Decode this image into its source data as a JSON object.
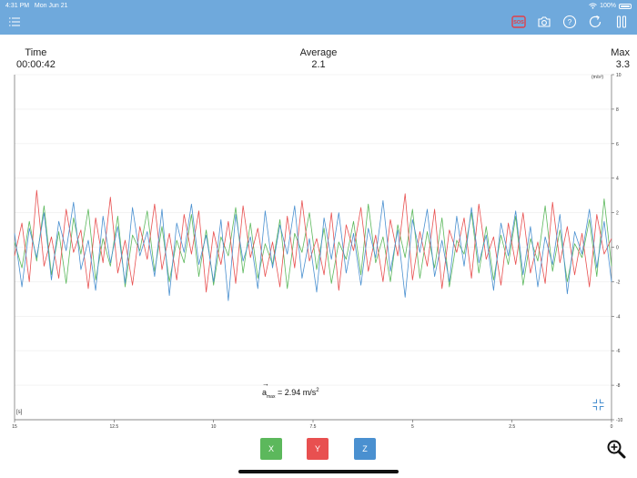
{
  "status_bar": {
    "time": "4:31 PM",
    "date": "Mon Jun 21",
    "battery_pct": "100%"
  },
  "toolbar": {
    "icons": [
      "menu-icon",
      "sos-icon",
      "camera-icon",
      "help-icon",
      "refresh-icon",
      "pause-icon"
    ],
    "sos_label": "SOS",
    "accent_color": "#6fa9dc",
    "sos_color": "#e0404a"
  },
  "stats": {
    "time_label": "Time",
    "time_value": "00:00:42",
    "avg_label": "Average",
    "avg_value": "2.1",
    "max_label": "Max",
    "max_value": "3.3"
  },
  "chart": {
    "unit_label": "(m/s²)",
    "x_unit_label": "[s]",
    "amax_symbol": "a",
    "amax_sub": "max",
    "amax_value": "= 2.94 m/s",
    "amax_sup": "2",
    "y_ticks": [
      "10",
      "8",
      "6",
      "4",
      "2",
      "0",
      "-2",
      "-4",
      "-6",
      "-8",
      "-10"
    ],
    "x_ticks": [
      "15",
      "12.5",
      "10",
      "7.5",
      "5",
      "2.5",
      "0"
    ]
  },
  "axis_buttons": [
    {
      "label": "X",
      "color": "#5cb85c"
    },
    {
      "label": "Y",
      "color": "#e85050"
    },
    {
      "label": "Z",
      "color": "#4a90d0"
    }
  ],
  "chart_data": {
    "type": "line",
    "title": "",
    "xlabel": "[s]",
    "ylabel": "(m/s²)",
    "xlim": [
      15,
      0
    ],
    "ylim": [
      -10,
      10
    ],
    "grid": true,
    "legend": [
      "X",
      "Y",
      "Z"
    ],
    "series": [
      {
        "name": "X",
        "color": "#5cb85c",
        "values": [
          0.3,
          -1.2,
          1.5,
          -0.8,
          2.4,
          -1.6,
          0.9,
          -2.1,
          1.7,
          -0.4,
          2.2,
          -1.9,
          0.5,
          -1.1,
          1.8,
          -2.3,
          0.7,
          -0.2,
          2.1,
          -1.4,
          1.2,
          -2.0,
          0.4,
          -0.9,
          1.9,
          -1.7,
          1.0,
          -2.2,
          0.6,
          -0.5,
          2.3,
          -1.5,
          1.4,
          -1.8,
          0.2,
          -1.0,
          1.6,
          -2.4,
          0.8,
          -0.3,
          2.0,
          -1.3,
          1.1,
          -2.1,
          0.3,
          -0.7,
          1.5,
          -1.6,
          2.5,
          -0.9,
          0.6,
          -2.0,
          1.3,
          -0.6,
          2.2,
          -1.8,
          0.9,
          -1.2,
          1.7,
          -2.3,
          0.4,
          -0.4,
          2.0,
          -1.5,
          1.2,
          -1.9,
          0.7,
          -1.0,
          1.8,
          -2.2,
          0.5,
          -0.8,
          2.4,
          -1.4,
          1.0,
          -2.0,
          0.2,
          -0.6,
          1.6,
          -1.7,
          2.8,
          -1.1
        ]
      },
      {
        "name": "Y",
        "color": "#e85050",
        "values": [
          -0.5,
          1.4,
          -2.0,
          3.3,
          -1.1,
          0.6,
          -1.8,
          2.2,
          -0.3,
          1.0,
          -2.4,
          1.7,
          -0.9,
          2.9,
          -1.5,
          0.4,
          -2.2,
          1.2,
          -0.7,
          2.5,
          -1.3,
          0.8,
          -1.9,
          1.9,
          -0.4,
          2.1,
          -2.6,
          0.9,
          -1.0,
          1.5,
          -2.1,
          2.4,
          -0.6,
          1.1,
          -1.7,
          0.3,
          -2.3,
          1.8,
          -1.2,
          2.7,
          -0.8,
          0.5,
          -1.6,
          2.0,
          -2.5,
          1.3,
          -0.2,
          2.3,
          -1.4,
          0.7,
          -2.0,
          1.6,
          -0.5,
          3.1,
          -1.9,
          0.9,
          -1.1,
          2.2,
          -2.4,
          1.0,
          -0.3,
          1.7,
          -1.8,
          2.5,
          -0.7,
          0.6,
          -2.2,
          1.4,
          -1.0,
          2.0,
          -1.5,
          0.3,
          -2.1,
          2.6,
          -0.9,
          1.2,
          -1.6,
          0.8,
          -2.3,
          1.9,
          -0.4,
          0.5
        ]
      },
      {
        "name": "Z",
        "color": "#4a90d0",
        "values": [
          0.8,
          -2.3,
          1.1,
          -0.6,
          2.0,
          -1.9,
          1.5,
          -0.2,
          2.6,
          -1.3,
          0.4,
          -2.5,
          1.8,
          -0.9,
          1.2,
          -2.1,
          2.3,
          -0.5,
          0.9,
          -1.7,
          2.2,
          -2.8,
          1.4,
          -0.3,
          2.5,
          -1.0,
          0.7,
          -2.0,
          1.6,
          -3.1,
          1.9,
          -0.8,
          0.6,
          -2.4,
          2.1,
          -1.2,
          1.3,
          -0.4,
          2.4,
          -1.8,
          0.5,
          -2.6,
          1.7,
          -0.7,
          2.0,
          -1.5,
          0.8,
          -2.2,
          1.1,
          -0.6,
          2.7,
          -1.4,
          1.0,
          -2.9,
          1.6,
          -0.3,
          2.2,
          -1.7,
          0.4,
          -2.0,
          1.8,
          -1.1,
          2.3,
          -0.9,
          0.7,
          -2.5,
          1.4,
          -0.5,
          2.1,
          -1.6,
          1.2,
          -2.3,
          0.6,
          -1.0,
          1.9,
          -2.7,
          0.9,
          -0.4,
          2.2,
          -1.2,
          1.5,
          -2.0
        ]
      }
    ]
  }
}
